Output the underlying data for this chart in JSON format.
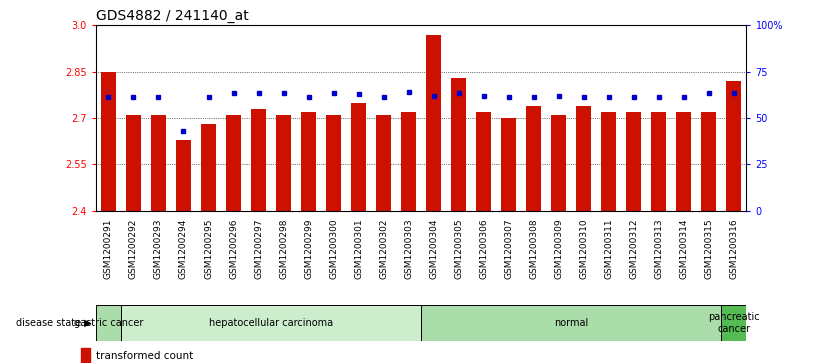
{
  "title": "GDS4882 / 241140_at",
  "samples": [
    "GSM1200291",
    "GSM1200292",
    "GSM1200293",
    "GSM1200294",
    "GSM1200295",
    "GSM1200296",
    "GSM1200297",
    "GSM1200298",
    "GSM1200299",
    "GSM1200300",
    "GSM1200301",
    "GSM1200302",
    "GSM1200303",
    "GSM1200304",
    "GSM1200305",
    "GSM1200306",
    "GSM1200307",
    "GSM1200308",
    "GSM1200309",
    "GSM1200310",
    "GSM1200311",
    "GSM1200312",
    "GSM1200313",
    "GSM1200314",
    "GSM1200315",
    "GSM1200316"
  ],
  "bar_heights": [
    2.85,
    2.71,
    2.71,
    2.63,
    2.68,
    2.71,
    2.73,
    2.71,
    2.72,
    2.71,
    2.75,
    2.71,
    2.72,
    2.97,
    2.83,
    2.72,
    2.7,
    2.74,
    2.71,
    2.74,
    2.72,
    2.72,
    2.72,
    2.72,
    2.72,
    2.82
  ],
  "percentile_ranks": [
    0.615,
    0.615,
    0.615,
    0.43,
    0.615,
    0.635,
    0.635,
    0.635,
    0.615,
    0.635,
    0.63,
    0.615,
    0.64,
    0.62,
    0.635,
    0.62,
    0.615,
    0.615,
    0.62,
    0.615,
    0.615,
    0.615,
    0.615,
    0.615,
    0.635,
    0.635
  ],
  "disease_groups": [
    {
      "label": "gastric cancer",
      "start": 0,
      "end": 1,
      "color": "#aaddaa"
    },
    {
      "label": "hepatocellular carcinoma",
      "start": 1,
      "end": 13,
      "color": "#cceecc"
    },
    {
      "label": "normal",
      "start": 13,
      "end": 25,
      "color": "#aaddaa"
    },
    {
      "label": "pancreatic\ncancer",
      "start": 25,
      "end": 26,
      "color": "#55bb55"
    }
  ],
  "y_min": 2.4,
  "y_max": 3.0,
  "y_ticks_left": [
    2.4,
    2.55,
    2.7,
    2.85,
    3.0
  ],
  "y_ticks_right": [
    0,
    25,
    50,
    75,
    100
  ],
  "bar_color": "#cc1100",
  "percentile_color": "#0000cc",
  "title_fontsize": 10,
  "tick_fontsize": 7,
  "label_fontsize": 8
}
